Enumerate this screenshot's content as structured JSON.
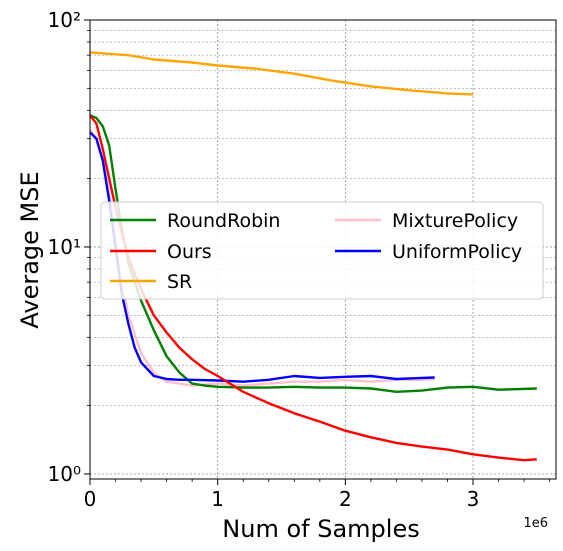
{
  "chart_data": {
    "type": "line",
    "xlabel": "Num of Samples",
    "ylabel": "Average MSE",
    "x_multiplier_label": "1e6",
    "xlim": [
      0,
      3.65
    ],
    "ylim": [
      0.95,
      100
    ],
    "y_scale": "log",
    "grid": true,
    "legend_position": "center-right",
    "legend_columns": 2,
    "x_ticks": [
      0,
      1,
      2,
      3
    ],
    "x_tick_labels": [
      "0",
      "1",
      "2",
      "3"
    ],
    "y_ticks": [
      1,
      10,
      100
    ],
    "y_tick_labels": [
      "10⁰",
      "10¹",
      "10²"
    ],
    "series": [
      {
        "name": "RoundRobin",
        "color": "#008000",
        "points": [
          [
            0,
            38
          ],
          [
            0.05,
            37
          ],
          [
            0.1,
            34
          ],
          [
            0.15,
            28
          ],
          [
            0.2,
            18
          ],
          [
            0.25,
            12
          ],
          [
            0.3,
            8.5
          ],
          [
            0.4,
            5.8
          ],
          [
            0.5,
            4.3
          ],
          [
            0.6,
            3.3
          ],
          [
            0.7,
            2.8
          ],
          [
            0.8,
            2.5
          ],
          [
            0.9,
            2.45
          ],
          [
            1.0,
            2.42
          ],
          [
            1.2,
            2.4
          ],
          [
            1.4,
            2.4
          ],
          [
            1.6,
            2.42
          ],
          [
            1.8,
            2.4
          ],
          [
            2.0,
            2.4
          ],
          [
            2.2,
            2.38
          ],
          [
            2.4,
            2.3
          ],
          [
            2.6,
            2.33
          ],
          [
            2.8,
            2.4
          ],
          [
            3.0,
            2.42
          ],
          [
            3.2,
            2.35
          ],
          [
            3.5,
            2.38
          ]
        ]
      },
      {
        "name": "Ours",
        "color": "#ff0000",
        "points": [
          [
            0,
            38
          ],
          [
            0.05,
            35
          ],
          [
            0.1,
            27
          ],
          [
            0.15,
            20
          ],
          [
            0.2,
            15
          ],
          [
            0.25,
            11.5
          ],
          [
            0.3,
            9
          ],
          [
            0.4,
            6.5
          ],
          [
            0.5,
            5
          ],
          [
            0.6,
            4.2
          ],
          [
            0.7,
            3.6
          ],
          [
            0.8,
            3.2
          ],
          [
            0.9,
            2.9
          ],
          [
            1.0,
            2.7
          ],
          [
            1.2,
            2.3
          ],
          [
            1.4,
            2.05
          ],
          [
            1.6,
            1.85
          ],
          [
            1.8,
            1.7
          ],
          [
            2.0,
            1.55
          ],
          [
            2.2,
            1.45
          ],
          [
            2.4,
            1.37
          ],
          [
            2.6,
            1.32
          ],
          [
            2.8,
            1.28
          ],
          [
            3.0,
            1.22
          ],
          [
            3.2,
            1.18
          ],
          [
            3.4,
            1.15
          ],
          [
            3.5,
            1.16
          ]
        ]
      },
      {
        "name": "SR",
        "color": "#ffa500",
        "points": [
          [
            0,
            72
          ],
          [
            0.3,
            70
          ],
          [
            0.5,
            67
          ],
          [
            0.8,
            65
          ],
          [
            1.0,
            63
          ],
          [
            1.3,
            61
          ],
          [
            1.6,
            58
          ],
          [
            1.9,
            54
          ],
          [
            2.2,
            51
          ],
          [
            2.5,
            49
          ],
          [
            2.8,
            47.5
          ],
          [
            3.0,
            47
          ]
        ]
      },
      {
        "name": "MixturePolicy",
        "color": "#ffc0cb",
        "points": [
          [
            0,
            33
          ],
          [
            0.05,
            30
          ],
          [
            0.1,
            24
          ],
          [
            0.15,
            17
          ],
          [
            0.2,
            11
          ],
          [
            0.25,
            7
          ],
          [
            0.3,
            5
          ],
          [
            0.4,
            3.4
          ],
          [
            0.5,
            2.8
          ],
          [
            0.6,
            2.55
          ],
          [
            0.7,
            2.5
          ],
          [
            0.8,
            2.45
          ],
          [
            1.0,
            2.5
          ],
          [
            1.2,
            2.45
          ],
          [
            1.4,
            2.5
          ],
          [
            1.6,
            2.55
          ],
          [
            1.8,
            2.55
          ],
          [
            2.0,
            2.6
          ],
          [
            2.2,
            2.55
          ],
          [
            2.4,
            2.6
          ],
          [
            2.6,
            2.6
          ],
          [
            2.7,
            2.62
          ]
        ]
      },
      {
        "name": "UniformPolicy",
        "color": "#0000ff",
        "points": [
          [
            0,
            32
          ],
          [
            0.05,
            30
          ],
          [
            0.1,
            24
          ],
          [
            0.15,
            16
          ],
          [
            0.2,
            10
          ],
          [
            0.25,
            6.2
          ],
          [
            0.3,
            4.6
          ],
          [
            0.35,
            3.6
          ],
          [
            0.4,
            3.1
          ],
          [
            0.5,
            2.7
          ],
          [
            0.6,
            2.62
          ],
          [
            0.7,
            2.6
          ],
          [
            0.8,
            2.6
          ],
          [
            1.0,
            2.58
          ],
          [
            1.2,
            2.55
          ],
          [
            1.4,
            2.6
          ],
          [
            1.6,
            2.7
          ],
          [
            1.8,
            2.65
          ],
          [
            2.0,
            2.68
          ],
          [
            2.2,
            2.7
          ],
          [
            2.4,
            2.62
          ],
          [
            2.6,
            2.65
          ],
          [
            2.7,
            2.66
          ]
        ]
      }
    ]
  }
}
